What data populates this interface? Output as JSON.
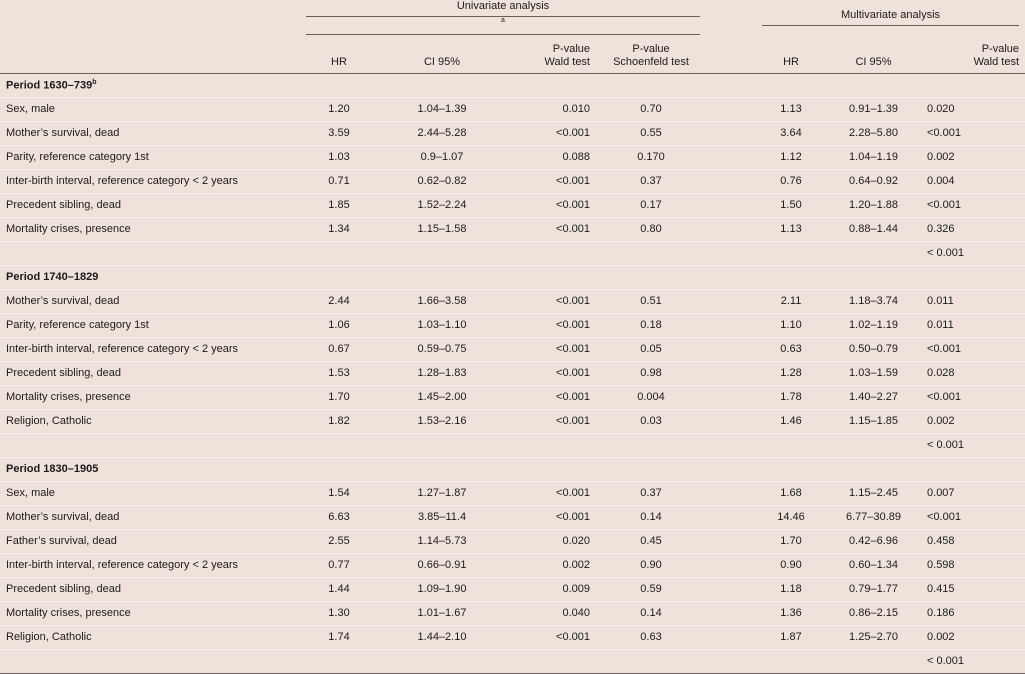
{
  "header": {
    "univariate": "Univariate analysis",
    "univariate_sup": "a",
    "multivariate": "Multivariate analysis",
    "cols": {
      "hr": "HR",
      "ci": "CI 95%",
      "pwald_1": "P-value",
      "pwald_2": "Wald test",
      "pschoen_1": "P-value",
      "pschoen_2": "Schoenfeld test",
      "mhr": "HR",
      "mci": "CI 95%",
      "mpwald_1": "P-value",
      "mpwald_2": "Wald test"
    }
  },
  "periods": [
    {
      "title": "Period 1630–739",
      "title_sup": "b",
      "rows": [
        {
          "label": "Sex, male",
          "hr": "1.20",
          "ci": "1.04–1.39",
          "pw": "0.010",
          "ps": "0.70",
          "mhr": "1.13",
          "mci": "0.91–1.39",
          "mpw": "0.020"
        },
        {
          "label": "Mother’s survival, dead",
          "hr": "3.59",
          "ci": "2.44–5.28",
          "pw": "<0.001",
          "ps": "0.55",
          "mhr": "3.64",
          "mci": "2.28–5.80",
          "mpw": "<0.001"
        },
        {
          "label": "Parity, reference category 1st",
          "hr": "1.03",
          "ci": "0.9–1.07",
          "pw": "0.088",
          "ps": "0.170",
          "mhr": "1.12",
          "mci": "1.04–1.19",
          "mpw": "0.002"
        },
        {
          "label": "Inter-birth interval, reference category < 2 years",
          "hr": "0.71",
          "ci": "0.62–0.82",
          "pw": "<0.001",
          "ps": "0.37",
          "mhr": "0.76",
          "mci": "0.64–0.92",
          "mpw": "0.004"
        },
        {
          "label": "Precedent sibling, dead",
          "hr": "1.85",
          "ci": "1.52–2.24",
          "pw": "<0.001",
          "ps": "0.17",
          "mhr": "1.50",
          "mci": "1.20–1.88",
          "mpw": "<0.001"
        },
        {
          "label": "Mortality crises, presence",
          "hr": "1.34",
          "ci": "1.15–1.58",
          "pw": "<0.001",
          "ps": "0.80",
          "mhr": "1.13",
          "mci": "0.88–1.44",
          "mpw": "0.326"
        }
      ],
      "overall": "< 0.001"
    },
    {
      "title": "Period 1740–1829",
      "title_sup": "",
      "rows": [
        {
          "label": "Mother’s survival, dead",
          "hr": "2.44",
          "ci": "1.66–3.58",
          "pw": "<0.001",
          "ps": "0.51",
          "mhr": "2.11",
          "mci": "1.18–3.74",
          "mpw": "0.011"
        },
        {
          "label": "Parity, reference category 1st",
          "hr": "1.06",
          "ci": "1.03–1.10",
          "pw": "<0.001",
          "ps": "0.18",
          "mhr": "1.10",
          "mci": "1.02–1.19",
          "mpw": "0.011"
        },
        {
          "label": "Inter-birth interval, reference category < 2 years",
          "hr": "0.67",
          "ci": "0.59–0.75",
          "pw": "<0.001",
          "ps": "0.05",
          "mhr": "0.63",
          "mci": "0.50–0.79",
          "mpw": "<0.001"
        },
        {
          "label": "Precedent sibling, dead",
          "hr": "1.53",
          "ci": "1.28–1.83",
          "pw": "<0.001",
          "ps": "0.98",
          "mhr": "1.28",
          "mci": "1.03–1.59",
          "mpw": "0.028"
        },
        {
          "label": "Mortality crises, presence",
          "hr": "1.70",
          "ci": "1.45–2.00",
          "pw": "<0.001",
          "ps": "0.004",
          "mhr": "1.78",
          "mci": "1.40–2.27",
          "mpw": "<0.001"
        },
        {
          "label": "Religion, Catholic",
          "hr": "1.82",
          "ci": "1.53–2.16",
          "pw": "<0.001",
          "ps": "0.03",
          "mhr": "1.46",
          "mci": "1.15–1.85",
          "mpw": "0.002"
        }
      ],
      "overall": "< 0.001"
    },
    {
      "title": "Period 1830–1905",
      "title_sup": "",
      "rows": [
        {
          "label": "Sex, male",
          "hr": "1.54",
          "ci": "1.27–1.87",
          "pw": "<0.001",
          "ps": "0.37",
          "mhr": "1.68",
          "mci": "1.15–2.45",
          "mpw": "0.007"
        },
        {
          "label": "Mother’s survival, dead",
          "hr": "6.63",
          "ci": "3.85–11.4",
          "pw": "<0.001",
          "ps": "0.14",
          "mhr": "14.46",
          "mci": "6.77–30.89",
          "mpw": "<0.001"
        },
        {
          "label": "Father’s survival, dead",
          "hr": "2.55",
          "ci": "1.14–5.73",
          "pw": "0.020",
          "ps": "0.45",
          "mhr": "1.70",
          "mci": "0.42–6.96",
          "mpw": "0.458"
        },
        {
          "label": "Inter-birth interval, reference category < 2 years",
          "hr": "0.77",
          "ci": "0.66–0.91",
          "pw": "0.002",
          "ps": "0.90",
          "mhr": "0.90",
          "mci": "0.60–1.34",
          "mpw": "0.598"
        },
        {
          "label": "Precedent sibling, dead",
          "hr": "1.44",
          "ci": "1.09–1.90",
          "pw": "0.009",
          "ps": "0.59",
          "mhr": "1.18",
          "mci": "0.79–1.77",
          "mpw": "0.415"
        },
        {
          "label": "Mortality crises, presence",
          "hr": "1.30",
          "ci": "1.01–1.67",
          "pw": "0.040",
          "ps": "0.14",
          "mhr": "1.36",
          "mci": "0.86–2.15",
          "mpw": "0.186"
        },
        {
          "label": "Religion, Catholic",
          "hr": "1.74",
          "ci": "1.44–2.10",
          "pw": "<0.001",
          "ps": "0.63",
          "mhr": "1.87",
          "mci": "1.25–2.70",
          "mpw": "0.002"
        }
      ],
      "overall": "< 0.001"
    }
  ]
}
